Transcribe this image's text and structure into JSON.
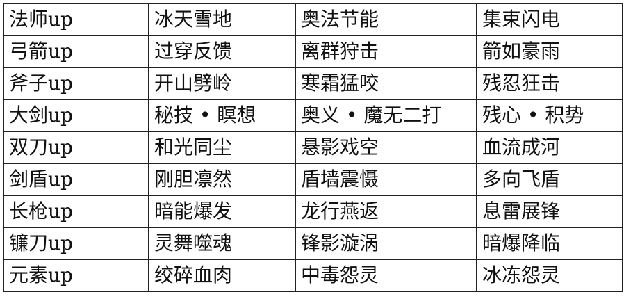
{
  "table": {
    "rows": [
      [
        "法师up",
        "冰天雪地",
        "奥法节能",
        "集束闪电"
      ],
      [
        "弓箭up",
        "过穿反馈",
        "离群狩击",
        "箭如豪雨"
      ],
      [
        "斧子up",
        "开山劈岭",
        "寒霜猛咬",
        "残忍狂击"
      ],
      [
        "大剑up",
        "秘技 • 瞑想",
        "奥义 • 魔无二打",
        "残心 • 积势"
      ],
      [
        "双刀up",
        "和光同尘",
        "悬影戏空",
        "血流成河"
      ],
      [
        "剑盾up",
        "刚胆凛然",
        "盾墙震慑",
        "多向飞盾"
      ],
      [
        "长枪up",
        "暗能爆发",
        "龙行燕返",
        "息雷展锋"
      ],
      [
        "镰刀up",
        "灵舞噬魂",
        "锋影漩涡",
        "暗爆降临"
      ],
      [
        "元素up",
        "绞碎血肉",
        "中毒怨灵",
        "冰冻怨灵"
      ]
    ]
  }
}
